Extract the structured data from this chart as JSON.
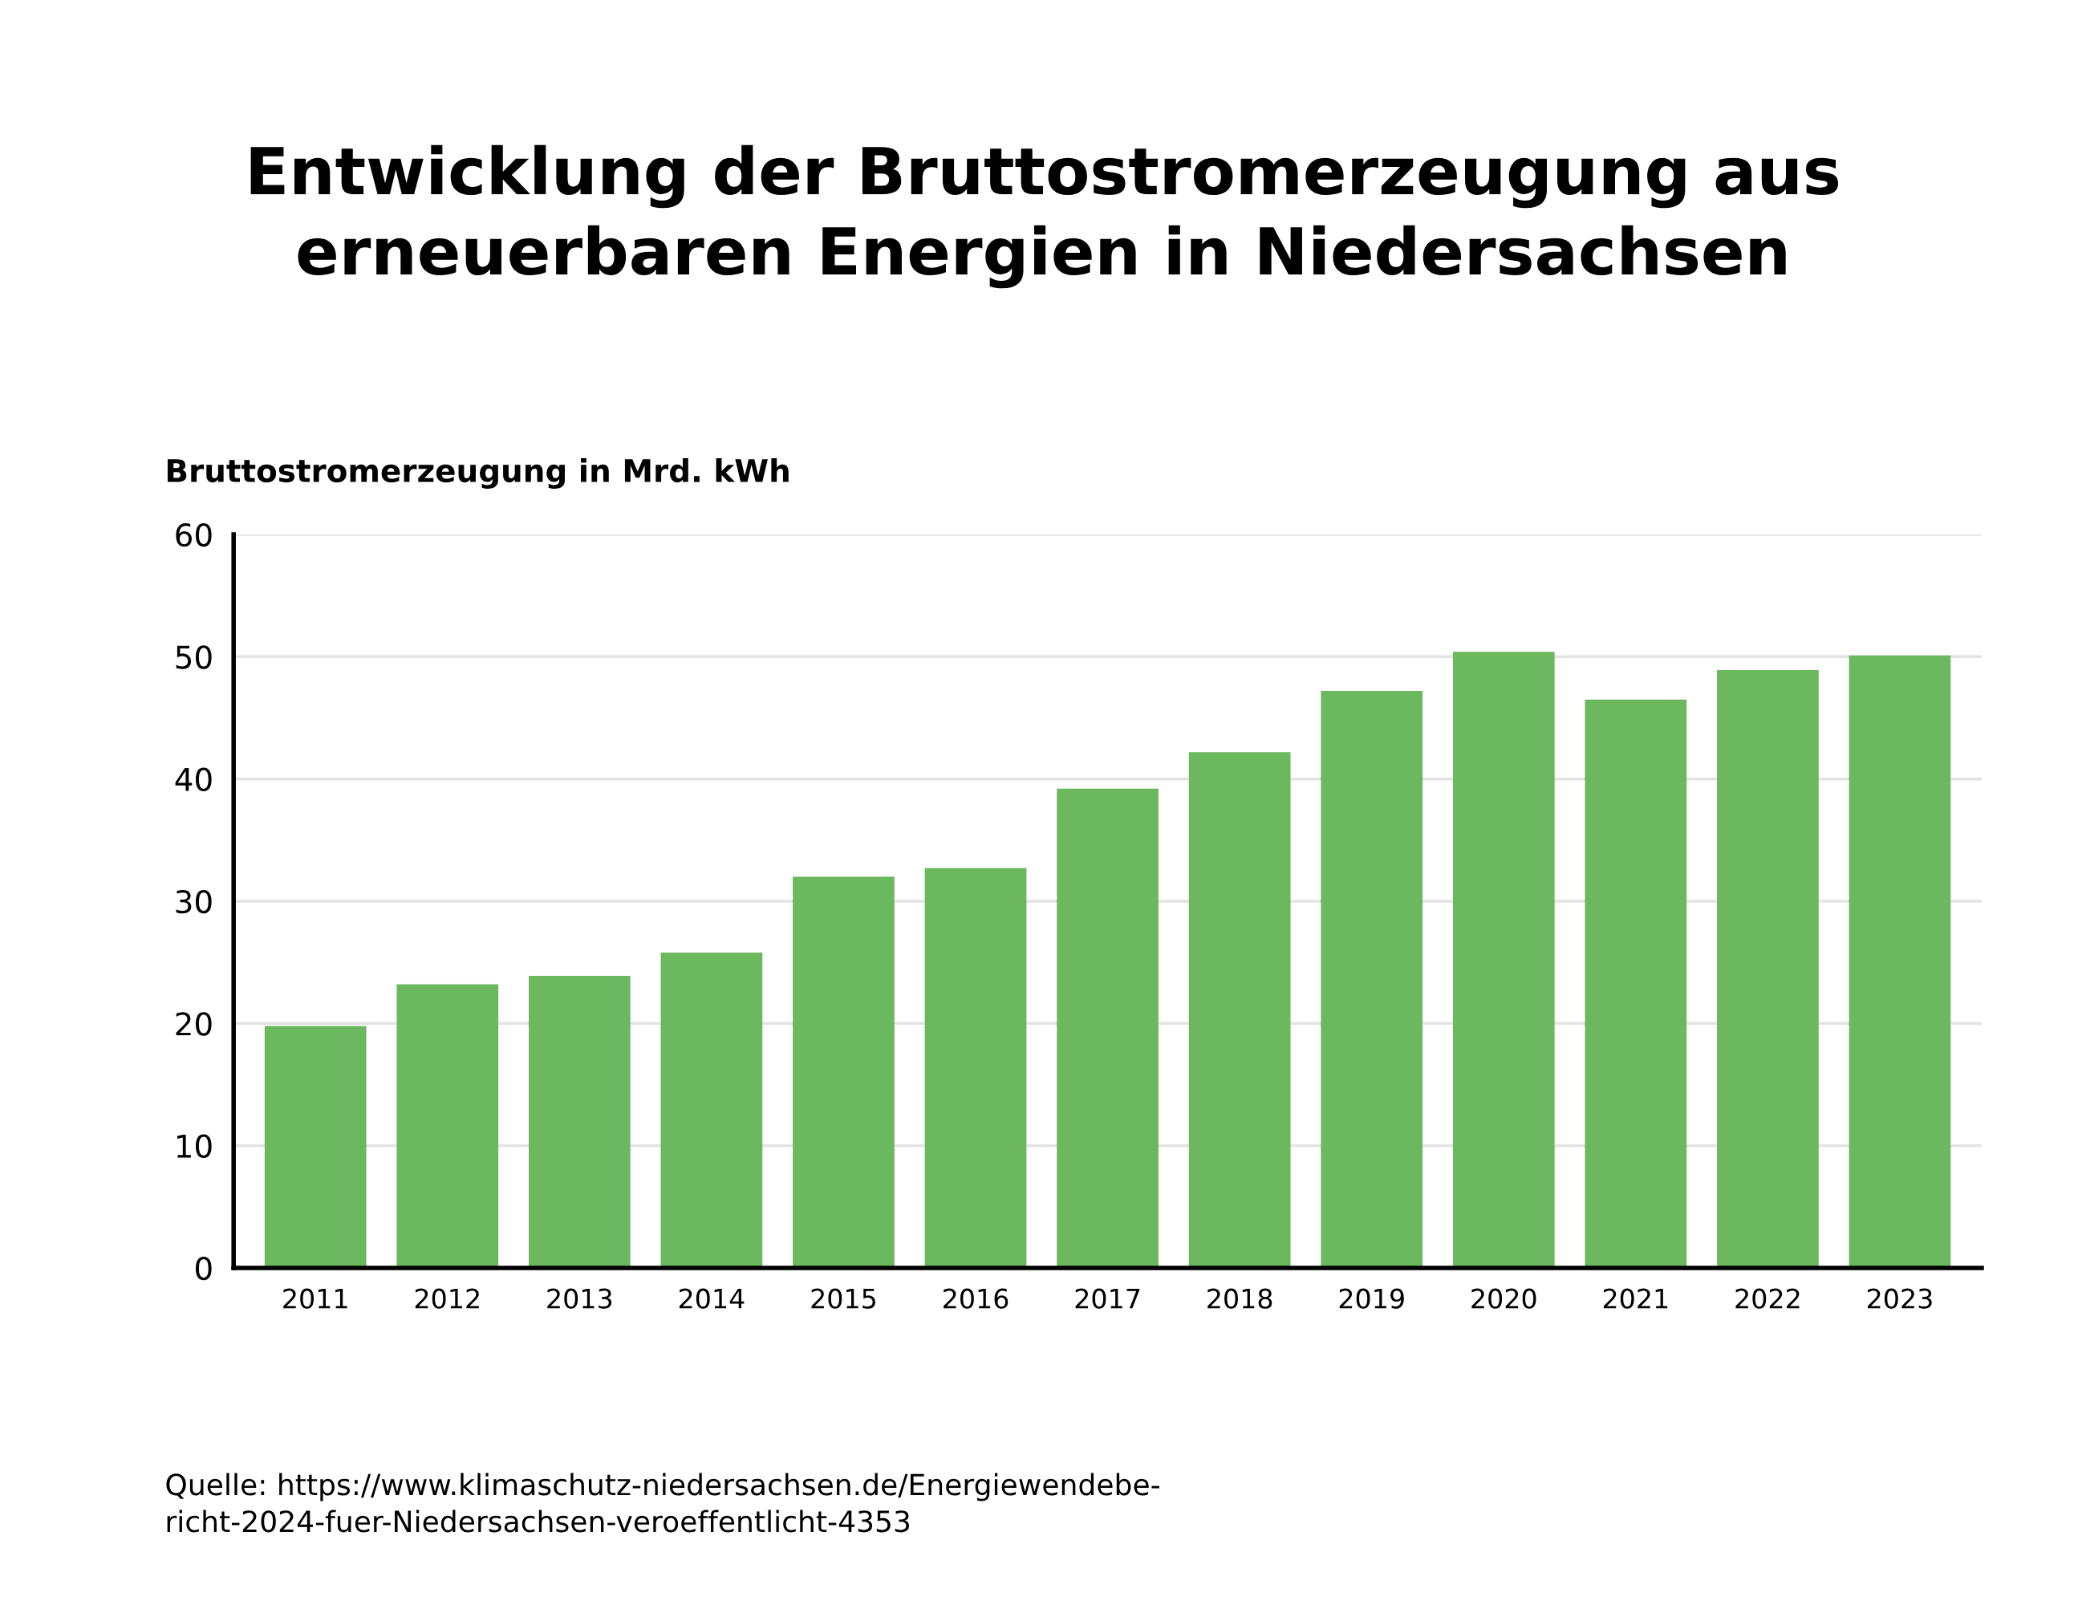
{
  "chart_data": {
    "type": "bar",
    "title": "Entwicklung der Bruttostromerzeugung aus\nerneuerbaren Energien in Niedersachsen",
    "ylabel": "Bruttostromerzeugung in Mrd. kWh",
    "categories": [
      "2011",
      "2012",
      "2013",
      "2014",
      "2015",
      "2016",
      "2017",
      "2018",
      "2019",
      "2020",
      "2021",
      "2022",
      "2023"
    ],
    "values": [
      19.8,
      23.2,
      23.9,
      25.8,
      32.0,
      32.7,
      39.2,
      42.2,
      47.2,
      50.4,
      46.5,
      48.9,
      50.1
    ],
    "color": "#6cb85e",
    "ylim": [
      0,
      60
    ],
    "yticks": [
      0,
      10,
      20,
      30,
      40,
      50,
      60
    ],
    "grid": "y",
    "annotations": [
      "Quelle: https://www.klimaschutz-niedersachsen.de/Energiewendebe-\nricht-2024-fuer-Niedersachsen-veroeffentlicht-4353"
    ]
  }
}
